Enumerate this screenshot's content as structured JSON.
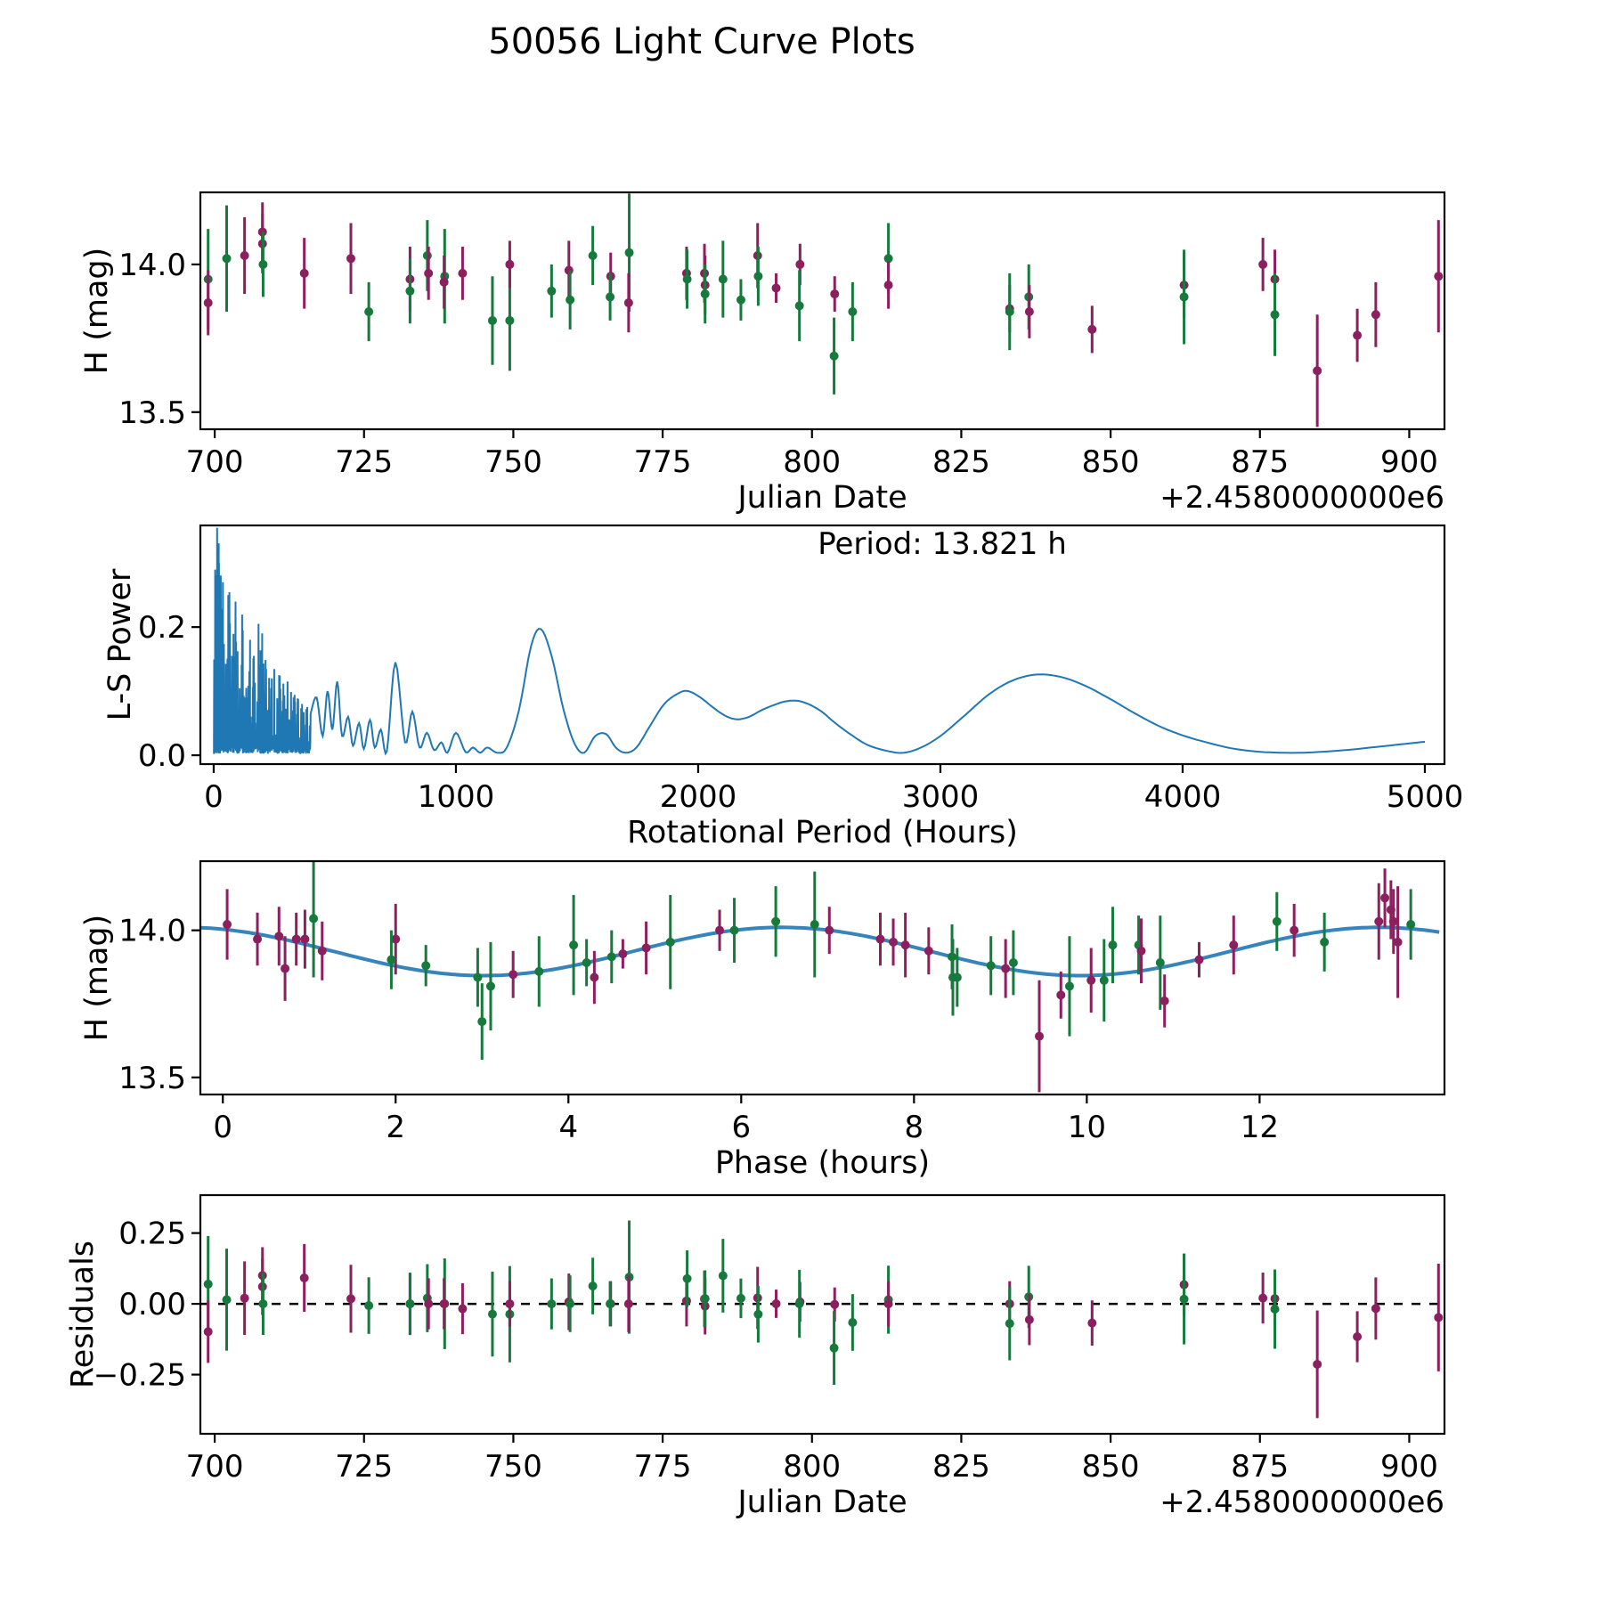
{
  "title": "50056 Light Curve Plots",
  "colors": {
    "series_green": "#167a3d",
    "series_magenta": "#8c205e",
    "fit_line": "#1f77b4",
    "periodogram_line": "#1f77b4",
    "zero_line": "#000000",
    "axis": "#000000"
  },
  "chart_data": {
    "figure_title": "50056 Light Curve Plots",
    "jd_offset_label": "+2.4580000000e6",
    "point_fields": [
      "jd_minus_2458000",
      "h_mag",
      "err_mag",
      "series",
      "phase_hours"
    ],
    "observations": [
      [
        698.9,
        13.95,
        0.17,
        "g",
        4.06
      ],
      [
        698.9,
        13.87,
        0.11,
        "m",
        0.72
      ],
      [
        702.0,
        14.02,
        0.18,
        "g",
        6.85
      ],
      [
        705.0,
        14.03,
        0.13,
        "m",
        13.38
      ],
      [
        708.0,
        14.11,
        0.1,
        "m",
        13.45
      ],
      [
        708.0,
        14.07,
        0.1,
        "m",
        13.52
      ],
      [
        708.1,
        14.0,
        0.11,
        "g",
        5.92
      ],
      [
        715.0,
        13.97,
        0.12,
        "m",
        2.0
      ],
      [
        722.8,
        14.02,
        0.12,
        "m",
        0.05
      ],
      [
        725.8,
        13.84,
        0.1,
        "g",
        2.95
      ],
      [
        732.7,
        13.95,
        0.11,
        "m",
        7.9
      ],
      [
        732.7,
        13.91,
        0.11,
        "g",
        8.44
      ],
      [
        735.6,
        14.03,
        0.12,
        "g",
        6.4
      ],
      [
        735.8,
        13.97,
        0.09,
        "m",
        7.61
      ],
      [
        738.5,
        13.96,
        0.16,
        "g",
        5.18
      ],
      [
        738.4,
        13.94,
        0.09,
        "m",
        4.9
      ],
      [
        741.5,
        13.97,
        0.09,
        "m",
        0.4
      ],
      [
        746.5,
        13.81,
        0.15,
        "g",
        3.1
      ],
      [
        749.4,
        13.81,
        0.17,
        "g",
        9.8
      ],
      [
        749.4,
        14.0,
        0.08,
        "m",
        7.02
      ],
      [
        756.4,
        13.91,
        0.09,
        "g",
        4.5
      ],
      [
        759.3,
        13.98,
        0.1,
        "m",
        0.65
      ],
      [
        759.5,
        13.88,
        0.1,
        "g",
        8.89
      ],
      [
        763.3,
        14.03,
        0.1,
        "g",
        12.2
      ],
      [
        766.3,
        13.96,
        0.08,
        "m",
        7.76
      ],
      [
        766.2,
        13.89,
        0.08,
        "g",
        4.21
      ],
      [
        769.4,
        14.04,
        0.2,
        "g",
        1.05
      ],
      [
        769.3,
        13.87,
        0.1,
        "m",
        9.06
      ],
      [
        779.0,
        13.97,
        0.09,
        "m",
        0.85
      ],
      [
        779.1,
        13.95,
        0.1,
        "g",
        10.6
      ],
      [
        782.0,
        13.97,
        0.1,
        "m",
        0.95
      ],
      [
        782.1,
        13.93,
        0.1,
        "m",
        1.15
      ],
      [
        782.1,
        13.9,
        0.1,
        "g",
        1.95
      ],
      [
        785.1,
        13.95,
        0.13,
        "g",
        10.3
      ],
      [
        788.1,
        13.88,
        0.07,
        "g",
        2.35
      ],
      [
        790.9,
        14.03,
        0.11,
        "m",
        13.55
      ],
      [
        791.0,
        13.96,
        0.1,
        "g",
        12.75
      ],
      [
        794.0,
        13.92,
        0.05,
        "m",
        4.63
      ],
      [
        798.0,
        14.0,
        0.07,
        "m",
        5.75
      ],
      [
        797.9,
        13.86,
        0.12,
        "g",
        3.66
      ],
      [
        803.8,
        13.9,
        0.06,
        "m",
        11.3
      ],
      [
        803.7,
        13.69,
        0.13,
        "g",
        3.0
      ],
      [
        806.8,
        13.84,
        0.1,
        "g",
        8.5
      ],
      [
        812.8,
        14.02,
        0.12,
        "g",
        13.75
      ],
      [
        812.8,
        13.93,
        0.08,
        "m",
        8.17
      ],
      [
        833.1,
        13.85,
        0.08,
        "m",
        3.36
      ],
      [
        833.1,
        13.84,
        0.13,
        "g",
        8.45
      ],
      [
        836.3,
        13.89,
        0.11,
        "g",
        9.15
      ],
      [
        836.4,
        13.84,
        0.09,
        "m",
        4.3
      ],
      [
        846.9,
        13.78,
        0.08,
        "m",
        9.7
      ],
      [
        862.3,
        13.93,
        0.11,
        "m",
        10.63
      ],
      [
        862.3,
        13.89,
        0.16,
        "g",
        10.85
      ],
      [
        875.5,
        14.0,
        0.09,
        "m",
        12.4
      ],
      [
        877.5,
        13.95,
        0.1,
        "m",
        11.7
      ],
      [
        877.5,
        13.83,
        0.14,
        "g",
        10.2
      ],
      [
        884.6,
        13.64,
        0.19,
        "m",
        9.45
      ],
      [
        891.3,
        13.76,
        0.09,
        "m",
        10.9
      ],
      [
        894.4,
        13.83,
        0.11,
        "m",
        10.05
      ],
      [
        904.9,
        13.96,
        0.19,
        "m",
        13.6
      ]
    ],
    "panels": [
      {
        "id": "light_curve",
        "type": "scatter",
        "xlabel": "Julian Date",
        "ylabel": "H (mag)",
        "offset_label": "+2.4580000000e6",
        "xticks": [
          700,
          725,
          750,
          775,
          800,
          825,
          850,
          875,
          900
        ],
        "xtick_labels": [
          "700",
          "725",
          "750",
          "775",
          "800",
          "825",
          "850",
          "875",
          "900"
        ],
        "yticks": [
          13.5,
          14.0
        ],
        "ytick_labels": [
          "13.5",
          "14.0"
        ],
        "xlim": [
          697.6,
          905.9
        ],
        "ylim": [
          13.442,
          14.244
        ]
      },
      {
        "id": "periodogram",
        "type": "line",
        "xlabel": "Rotational Period (Hours)",
        "ylabel": "L-S Power",
        "annotation": "Period: 13.821 h",
        "best_period_hours": 13.821,
        "xticks": [
          0,
          1000,
          2000,
          3000,
          4000,
          5000
        ],
        "xtick_labels": [
          "0",
          "1000",
          "2000",
          "3000",
          "4000",
          "5000"
        ],
        "yticks": [
          0.0,
          0.2
        ],
        "ytick_labels": [
          "0.0",
          "0.2"
        ],
        "xlim": [
          -55,
          5081
        ],
        "ylim": [
          -0.0138,
          0.3586
        ],
        "curve": [
          [
            400,
            0.065
          ],
          [
            425,
            0.09
          ],
          [
            450,
            0.03
          ],
          [
            470,
            0.1
          ],
          [
            490,
            0.04
          ],
          [
            510,
            0.115
          ],
          [
            530,
            0.03
          ],
          [
            555,
            0.06
          ],
          [
            575,
            0.015
          ],
          [
            600,
            0.05
          ],
          [
            620,
            0.01
          ],
          [
            645,
            0.055
          ],
          [
            665,
            0.012
          ],
          [
            690,
            0.04
          ],
          [
            715,
            0.006
          ],
          [
            750,
            0.145
          ],
          [
            790,
            0.02
          ],
          [
            820,
            0.068
          ],
          [
            850,
            0.012
          ],
          [
            880,
            0.035
          ],
          [
            910,
            0.008
          ],
          [
            940,
            0.02
          ],
          [
            965,
            0.004
          ],
          [
            1000,
            0.035
          ],
          [
            1040,
            0.005
          ],
          [
            1070,
            0.012
          ],
          [
            1100,
            0.004
          ],
          [
            1130,
            0.012
          ],
          [
            1170,
            0.004
          ],
          [
            1210,
            0.012
          ],
          [
            1260,
            0.07
          ],
          [
            1310,
            0.17
          ],
          [
            1350,
            0.197
          ],
          [
            1395,
            0.155
          ],
          [
            1445,
            0.07
          ],
          [
            1490,
            0.018
          ],
          [
            1530,
            0.004
          ],
          [
            1575,
            0.03
          ],
          [
            1620,
            0.033
          ],
          [
            1660,
            0.012
          ],
          [
            1700,
            0.004
          ],
          [
            1745,
            0.012
          ],
          [
            1800,
            0.045
          ],
          [
            1860,
            0.08
          ],
          [
            1920,
            0.097
          ],
          [
            1960,
            0.1
          ],
          [
            2010,
            0.09
          ],
          [
            2060,
            0.075
          ],
          [
            2110,
            0.062
          ],
          [
            2160,
            0.056
          ],
          [
            2210,
            0.06
          ],
          [
            2260,
            0.07
          ],
          [
            2310,
            0.078
          ],
          [
            2360,
            0.084
          ],
          [
            2410,
            0.085
          ],
          [
            2460,
            0.079
          ],
          [
            2510,
            0.068
          ],
          [
            2560,
            0.052
          ],
          [
            2620,
            0.035
          ],
          [
            2700,
            0.016
          ],
          [
            2790,
            0.006
          ],
          [
            2850,
            0.004
          ],
          [
            2920,
            0.012
          ],
          [
            3000,
            0.03
          ],
          [
            3100,
            0.062
          ],
          [
            3200,
            0.095
          ],
          [
            3300,
            0.117
          ],
          [
            3400,
            0.126
          ],
          [
            3500,
            0.122
          ],
          [
            3600,
            0.108
          ],
          [
            3700,
            0.088
          ],
          [
            3800,
            0.066
          ],
          [
            3900,
            0.046
          ],
          [
            4000,
            0.031
          ],
          [
            4100,
            0.02
          ],
          [
            4200,
            0.011
          ],
          [
            4300,
            0.006
          ],
          [
            4400,
            0.004
          ],
          [
            4500,
            0.004
          ],
          [
            4600,
            0.006
          ],
          [
            4700,
            0.009
          ],
          [
            4800,
            0.013
          ],
          [
            4900,
            0.017
          ],
          [
            5000,
            0.021
          ]
        ],
        "noise": {
          "x_max": 400,
          "baseline": 0.004,
          "envelope": [
            [
              0,
              0.355
            ],
            [
              30,
              0.34
            ],
            [
              60,
              0.3
            ],
            [
              100,
              0.25
            ],
            [
              140,
              0.22
            ],
            [
              180,
              0.21
            ],
            [
              220,
              0.16
            ],
            [
              260,
              0.13
            ],
            [
              300,
              0.115
            ],
            [
              350,
              0.09
            ],
            [
              400,
              0.075
            ]
          ],
          "spikes": [
            [
              14,
              0.355
            ],
            [
              22,
              0.3
            ],
            [
              38,
              0.27
            ],
            [
              60,
              0.25
            ],
            [
              90,
              0.21
            ],
            [
              120,
              0.195
            ],
            [
              150,
              0.18
            ],
            [
              185,
              0.205
            ],
            [
              200,
              0.19
            ],
            [
              240,
              0.12
            ],
            [
              270,
              0.125
            ],
            [
              305,
              0.115
            ],
            [
              330,
              0.09
            ],
            [
              365,
              0.08
            ]
          ]
        }
      },
      {
        "id": "phase_curve",
        "type": "scatter",
        "xlabel": "Phase (hours)",
        "ylabel": "H (mag)",
        "xticks": [
          0,
          2,
          4,
          6,
          8,
          10,
          12
        ],
        "xtick_labels": [
          "0",
          "2",
          "4",
          "6",
          "8",
          "10",
          "12"
        ],
        "yticks": [
          13.5,
          14.0
        ],
        "ytick_labels": [
          "13.5",
          "14.0"
        ],
        "xlim": [
          -0.26,
          14.14
        ],
        "ylim": [
          13.442,
          14.235
        ],
        "fit": {
          "mean_mag": 13.928,
          "amplitude_mag": 0.082,
          "period_hours": 13.821,
          "harmonics": 2,
          "phase_of_max_hours": 6.47
        }
      },
      {
        "id": "residuals",
        "type": "scatter",
        "xlabel": "Julian Date",
        "ylabel": "Residuals",
        "offset_label": "+2.4580000000e6",
        "zero_line": true,
        "xticks": [
          700,
          725,
          750,
          775,
          800,
          825,
          850,
          875,
          900
        ],
        "xtick_labels": [
          "700",
          "725",
          "750",
          "775",
          "800",
          "825",
          "850",
          "875",
          "900"
        ],
        "yticks": [
          -0.25,
          0.0,
          0.25
        ],
        "ytick_labels": [
          "−0.25",
          "0.00",
          "0.25"
        ],
        "xlim": [
          697.6,
          905.9
        ],
        "ylim": [
          -0.459,
          0.384
        ]
      }
    ]
  }
}
